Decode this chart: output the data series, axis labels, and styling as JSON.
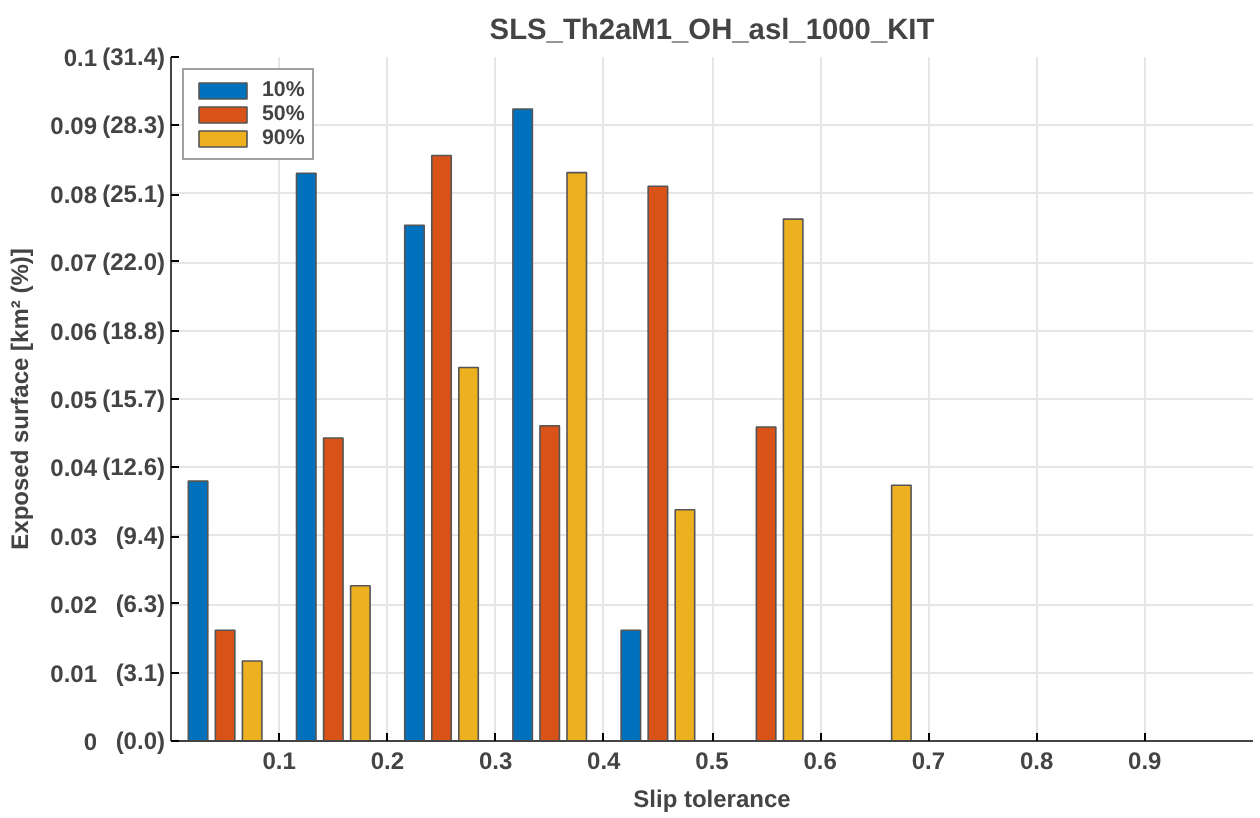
{
  "chart_data": {
    "type": "bar",
    "title": "SLS_Th2aM1_OH_asl_1000_KIT",
    "xlabel": "Slip tolerance",
    "ylabel": "Exposed surface [km² (%)]",
    "x": [
      0.05,
      0.15,
      0.25,
      0.35,
      0.45,
      0.55,
      0.65
    ],
    "series": [
      {
        "name": "10%",
        "color": "#0072bd",
        "values": [
          0.038,
          0.083,
          0.0754,
          0.0924,
          0.0162,
          null,
          null
        ]
      },
      {
        "name": "50%",
        "color": "#d95319",
        "values": [
          0.0162,
          0.0443,
          0.0856,
          0.0461,
          0.0811,
          0.0459,
          null
        ]
      },
      {
        "name": "90%",
        "color": "#edb120",
        "values": [
          0.0117,
          0.0227,
          0.0546,
          0.0831,
          0.0338,
          0.0763,
          0.0374
        ]
      }
    ],
    "xlim": [
      0,
      1
    ],
    "xticks": [
      0.1,
      0.2,
      0.3,
      0.4,
      0.5,
      0.6,
      0.7,
      0.8,
      0.9
    ],
    "ylim": [
      0,
      0.1
    ],
    "yticks": [
      0,
      0.01,
      0.02,
      0.03,
      0.04,
      0.05,
      0.06,
      0.07,
      0.08,
      0.09,
      0.1
    ],
    "y2lim": [
      0,
      31.4
    ],
    "y2ticks": [
      {
        "value": 0,
        "label": "(0.0)"
      },
      {
        "value": 3.1,
        "label": "(3.1)"
      },
      {
        "value": 6.3,
        "label": "(6.3)"
      },
      {
        "value": 9.4,
        "label": "(9.4)"
      },
      {
        "value": 12.6,
        "label": "(12.6)"
      },
      {
        "value": 15.7,
        "label": "(15.7)"
      },
      {
        "value": 18.8,
        "label": "(18.8)"
      },
      {
        "value": 22.0,
        "label": "(22.0)"
      },
      {
        "value": 25.1,
        "label": "(25.1)"
      },
      {
        "value": 28.3,
        "label": "(28.3)"
      },
      {
        "value": 31.4,
        "label": "(31.4)"
      }
    ],
    "grid": true,
    "legend": "top left"
  }
}
